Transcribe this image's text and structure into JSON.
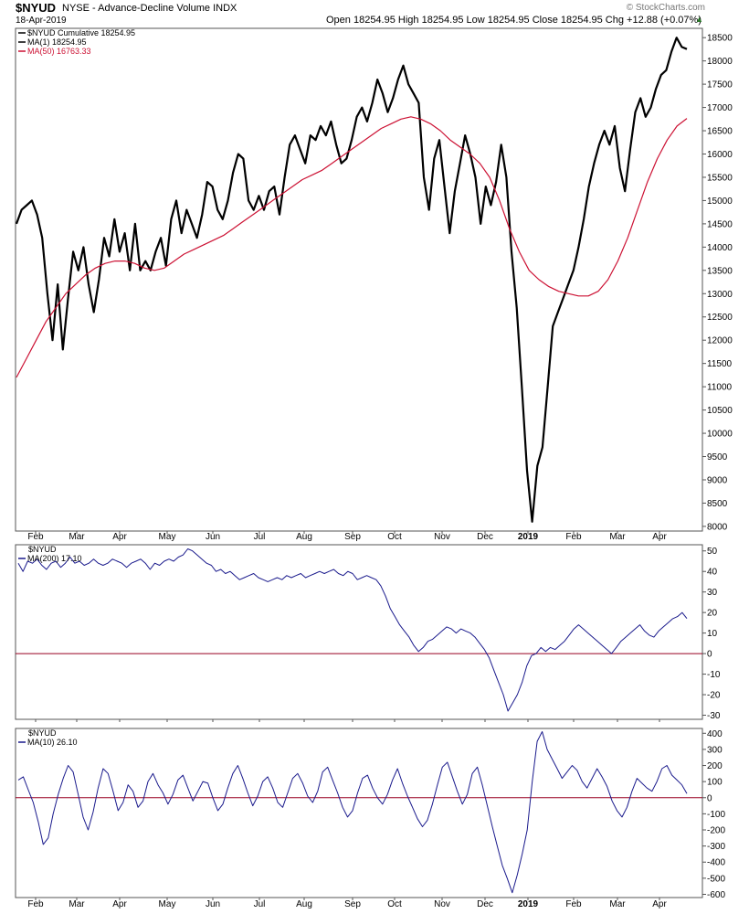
{
  "header": {
    "symbol": "$NYUD",
    "description": "NYSE - Advance-Decline Volume INDX",
    "date": "18-Apr-2019",
    "watermark": "© StockCharts.com",
    "ohlc": "Open 18254.95  High 18254.95  Low 18254.95  Close 18254.95  Chg +12.88 (+0.07%)"
  },
  "colors": {
    "price": "#000000",
    "ma50": "#cc1133",
    "osc": "#1a1a8c",
    "zero": "#990022",
    "grid": "#cccccc"
  },
  "chart_data": [
    {
      "type": "line",
      "legend": [
        "$NYUD Cumulative 18254.95",
        "MA(1) 18254.95",
        "MA(50) 16763.33"
      ],
      "x_labels": [
        "Feb",
        "Mar",
        "Apr",
        "May",
        "Jun",
        "Jul",
        "Aug",
        "Sep",
        "Oct",
        "Nov",
        "Dec",
        "2019",
        "Feb",
        "Mar",
        "Apr"
      ],
      "y_ticks": [
        8000,
        8500,
        9000,
        9500,
        10000,
        10500,
        11000,
        11500,
        12000,
        12500,
        13000,
        13500,
        14000,
        14500,
        15000,
        15500,
        16000,
        16500,
        17000,
        17500,
        18000,
        18500
      ],
      "ylim": [
        7900,
        18700
      ],
      "series": [
        {
          "name": "MA(1) 18254.95",
          "values": [
            14500,
            14800,
            14900,
            15000,
            14700,
            14200,
            13000,
            12000,
            13200,
            11800,
            12900,
            13900,
            13500,
            14000,
            13200,
            12600,
            13300,
            14200,
            13800,
            14600,
            13900,
            14300,
            13500,
            14500,
            13500,
            13700,
            13500,
            13900,
            14200,
            13600,
            14600,
            15000,
            14300,
            14800,
            14500,
            14200,
            14700,
            15400,
            15300,
            14800,
            14600,
            15000,
            15600,
            16000,
            15900,
            15000,
            14800,
            15100,
            14800,
            15200,
            15300,
            14700,
            15500,
            16200,
            16400,
            16100,
            15800,
            16400,
            16300,
            16600,
            16400,
            16700,
            16200,
            15800,
            15900,
            16300,
            16800,
            17000,
            16700,
            17100,
            17600,
            17300,
            16900,
            17200,
            17600,
            17900,
            17500,
            17300,
            17100,
            15500,
            14800,
            15900,
            16300,
            15300,
            14300,
            15200,
            15800,
            16400,
            16000,
            15500,
            14500,
            15300,
            14900,
            15400,
            16200,
            15500,
            13900,
            12700,
            11000,
            9200,
            8100,
            9300,
            9700,
            11000,
            12300,
            12600,
            12900,
            13200,
            13500,
            14000,
            14600,
            15300,
            15800,
            16200,
            16500,
            16200,
            16600,
            15700,
            15200,
            16100,
            16900,
            17200,
            16800,
            17000,
            17400,
            17700,
            17800,
            18200,
            18500,
            18300,
            18254.95
          ]
        },
        {
          "name": "MA(50) 16763.33",
          "values": [
            11200,
            11600,
            12000,
            12400,
            12700,
            13000,
            13200,
            13400,
            13550,
            13650,
            13700,
            13700,
            13650,
            13550,
            13500,
            13550,
            13700,
            13850,
            13950,
            14050,
            14150,
            14250,
            14400,
            14550,
            14700,
            14850,
            15000,
            15150,
            15300,
            15450,
            15550,
            15650,
            15800,
            15950,
            16100,
            16250,
            16400,
            16550,
            16650,
            16750,
            16800,
            16750,
            16650,
            16500,
            16300,
            16150,
            16000,
            15800,
            15500,
            15000,
            14400,
            13900,
            13500,
            13300,
            13150,
            13050,
            13000,
            12950,
            12950,
            13050,
            13300,
            13700,
            14200,
            14800,
            15400,
            15900,
            16300,
            16600,
            16763.33
          ]
        }
      ]
    },
    {
      "type": "line",
      "legend": [
        "$NYUD",
        "MA(200) 17.10"
      ],
      "y_ticks": [
        -30,
        -20,
        -10,
        0,
        10,
        20,
        30,
        40,
        50
      ],
      "ylim": [
        -32,
        53
      ],
      "reference_line": 0,
      "series": [
        {
          "name": "MA(200) 17.10",
          "values": [
            44,
            40,
            45,
            44,
            46,
            43,
            41,
            44,
            45,
            42,
            44,
            47,
            44,
            45,
            43,
            44,
            46,
            44,
            43,
            44,
            46,
            45,
            44,
            42,
            44,
            45,
            46,
            44,
            41,
            44,
            43,
            45,
            46,
            45,
            47,
            48,
            51,
            50,
            48,
            46,
            44,
            43,
            40,
            41,
            39,
            40,
            38,
            36,
            37,
            38,
            39,
            37,
            36,
            35,
            36,
            37,
            36,
            38,
            37,
            38,
            39,
            37,
            38,
            39,
            40,
            39,
            40,
            41,
            39,
            38,
            40,
            39,
            36,
            37,
            38,
            37,
            36,
            33,
            28,
            22,
            18,
            14,
            11,
            8,
            4,
            1,
            3,
            6,
            7,
            9,
            11,
            13,
            12,
            10,
            12,
            11,
            10,
            8,
            5,
            2,
            -2,
            -8,
            -14,
            -20,
            -28,
            -24,
            -20,
            -14,
            -6,
            -1,
            0,
            3,
            1,
            3,
            2,
            4,
            6,
            9,
            12,
            14,
            12,
            10,
            8,
            6,
            4,
            2,
            0,
            3,
            6,
            8,
            10,
            12,
            14,
            11,
            9,
            8,
            11,
            13,
            15,
            17,
            18,
            20,
            17.1
          ]
        }
      ]
    },
    {
      "type": "line",
      "legend": [
        "$NYUD",
        "MA(10) 26.10"
      ],
      "y_ticks": [
        -600,
        -500,
        -400,
        -300,
        -200,
        -100,
        0,
        100,
        200,
        300,
        400
      ],
      "ylim": [
        -620,
        430
      ],
      "reference_line": 0,
      "series": [
        {
          "name": "MA(10) 26.10",
          "values": [
            110,
            130,
            50,
            -30,
            -150,
            -290,
            -250,
            -100,
            20,
            120,
            200,
            160,
            20,
            -120,
            -200,
            -90,
            60,
            180,
            150,
            40,
            -80,
            -30,
            80,
            40,
            -60,
            -20,
            100,
            150,
            80,
            30,
            -40,
            20,
            110,
            140,
            60,
            -20,
            40,
            100,
            90,
            0,
            -80,
            -40,
            60,
            150,
            200,
            120,
            30,
            -50,
            10,
            100,
            130,
            60,
            -30,
            -60,
            30,
            120,
            150,
            90,
            10,
            -30,
            40,
            160,
            190,
            110,
            30,
            -60,
            -120,
            -80,
            30,
            120,
            140,
            60,
            0,
            -40,
            20,
            110,
            180,
            90,
            10,
            -60,
            -130,
            -180,
            -140,
            -40,
            80,
            190,
            220,
            130,
            40,
            -40,
            20,
            150,
            190,
            80,
            -50,
            -180,
            -300,
            -420,
            -500,
            -590,
            -480,
            -350,
            -200,
            100,
            350,
            410,
            300,
            240,
            180,
            120,
            160,
            200,
            170,
            100,
            60,
            120,
            180,
            130,
            70,
            -20,
            -80,
            -120,
            -60,
            40,
            120,
            90,
            60,
            40,
            100,
            180,
            200,
            140,
            110,
            80,
            26.1
          ]
        }
      ]
    }
  ]
}
